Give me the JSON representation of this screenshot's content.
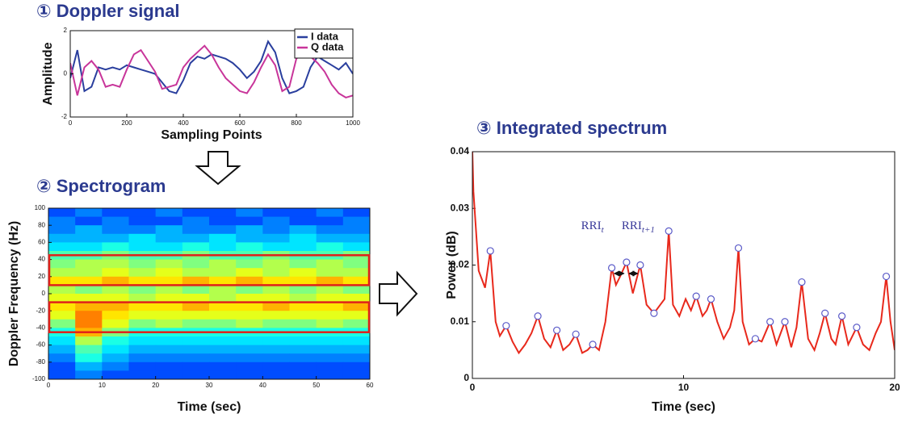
{
  "chart_data": [
    {
      "type": "line",
      "title": "① Doppler signal",
      "xlabel": "Sampling Points",
      "ylabel": "Amplitude",
      "x": [
        0,
        25,
        50,
        75,
        100,
        125,
        150,
        175,
        200,
        225,
        250,
        275,
        300,
        325,
        350,
        375,
        400,
        425,
        450,
        475,
        500,
        525,
        550,
        575,
        600,
        625,
        650,
        675,
        700,
        725,
        750,
        775,
        800,
        825,
        850,
        875,
        900,
        925,
        950,
        975,
        1000
      ],
      "series": [
        {
          "name": "I data",
          "color": "#2a3f9e",
          "values": [
            -0.2,
            1.1,
            -0.8,
            -0.6,
            0.3,
            0.2,
            0.3,
            0.2,
            0.4,
            0.3,
            0.2,
            0.1,
            0,
            -0.4,
            -0.8,
            -0.9,
            -0.3,
            0.5,
            0.8,
            0.7,
            0.9,
            0.8,
            0.7,
            0.5,
            0.2,
            -0.2,
            0.1,
            0.6,
            1.5,
            1.0,
            -0.2,
            -0.9,
            -0.8,
            -0.6,
            0.3,
            0.8,
            0.6,
            0.4,
            0.2,
            0.5,
            0
          ]
        },
        {
          "name": "Q data",
          "color": "#c8359a",
          "values": [
            0.5,
            -1.0,
            0.3,
            0.6,
            0.2,
            -0.6,
            -0.5,
            -0.6,
            0.2,
            0.9,
            1.1,
            0.6,
            0.1,
            -0.7,
            -0.6,
            -0.5,
            0.3,
            0.7,
            1.0,
            1.3,
            0.9,
            0.3,
            -0.2,
            -0.5,
            -0.8,
            -0.9,
            -0.4,
            0.3,
            0.9,
            0.4,
            -0.8,
            -0.6,
            0.7,
            1.0,
            0.8,
            0.5,
            0.1,
            -0.5,
            -0.9,
            -1.1,
            -1.0
          ]
        }
      ],
      "xlim": [
        0,
        1000
      ],
      "xticks": [
        0,
        200,
        400,
        600,
        800,
        1000
      ],
      "ylim": [
        -2,
        2
      ],
      "yticks": [
        -2,
        0,
        2
      ],
      "legend": "upper right"
    },
    {
      "type": "heatmap",
      "title": "② Spectrogram",
      "xlabel": "Time (sec)",
      "ylabel": "Doppler Frequency (Hz)",
      "x": [
        2.5,
        7.5,
        12.5,
        17.5,
        22.5,
        27.5,
        32.5,
        37.5,
        42.5,
        47.5,
        52.5,
        57.5
      ],
      "y": [
        95,
        85,
        75,
        65,
        55,
        45,
        35,
        25,
        15,
        5,
        -5,
        -15,
        -25,
        -35,
        -45,
        -55,
        -65,
        -75,
        -85,
        -95
      ],
      "z": [
        [
          0.2,
          0.25,
          0.2,
          0.2,
          0.25,
          0.2,
          0.2,
          0.25,
          0.2,
          0.2,
          0.25,
          0.2
        ],
        [
          0.25,
          0.2,
          0.25,
          0.2,
          0.2,
          0.25,
          0.2,
          0.2,
          0.25,
          0.2,
          0.2,
          0.25
        ],
        [
          0.25,
          0.3,
          0.25,
          0.25,
          0.3,
          0.25,
          0.25,
          0.3,
          0.25,
          0.3,
          0.25,
          0.25
        ],
        [
          0.3,
          0.3,
          0.3,
          0.35,
          0.3,
          0.3,
          0.35,
          0.3,
          0.3,
          0.35,
          0.3,
          0.3
        ],
        [
          0.35,
          0.35,
          0.4,
          0.35,
          0.35,
          0.4,
          0.35,
          0.4,
          0.35,
          0.35,
          0.4,
          0.35
        ],
        [
          0.45,
          0.45,
          0.5,
          0.45,
          0.45,
          0.5,
          0.45,
          0.45,
          0.5,
          0.45,
          0.45,
          0.5
        ],
        [
          0.5,
          0.55,
          0.55,
          0.5,
          0.55,
          0.5,
          0.55,
          0.5,
          0.55,
          0.5,
          0.55,
          0.5
        ],
        [
          0.55,
          0.55,
          0.6,
          0.55,
          0.6,
          0.55,
          0.55,
          0.6,
          0.55,
          0.6,
          0.55,
          0.55
        ],
        [
          0.65,
          0.65,
          0.7,
          0.65,
          0.65,
          0.7,
          0.65,
          0.7,
          0.65,
          0.65,
          0.7,
          0.65
        ],
        [
          0.55,
          0.5,
          0.55,
          0.5,
          0.55,
          0.5,
          0.55,
          0.5,
          0.55,
          0.5,
          0.55,
          0.5
        ],
        [
          0.6,
          0.6,
          0.6,
          0.55,
          0.6,
          0.6,
          0.55,
          0.6,
          0.6,
          0.55,
          0.6,
          0.6
        ],
        [
          0.65,
          0.7,
          0.7,
          0.65,
          0.65,
          0.7,
          0.65,
          0.65,
          0.7,
          0.65,
          0.65,
          0.7
        ],
        [
          0.6,
          0.75,
          0.65,
          0.6,
          0.6,
          0.6,
          0.6,
          0.6,
          0.6,
          0.6,
          0.6,
          0.6
        ],
        [
          0.5,
          0.75,
          0.6,
          0.5,
          0.55,
          0.5,
          0.5,
          0.55,
          0.5,
          0.5,
          0.55,
          0.5
        ],
        [
          0.4,
          0.7,
          0.5,
          0.4,
          0.4,
          0.4,
          0.4,
          0.4,
          0.4,
          0.4,
          0.4,
          0.4
        ],
        [
          0.35,
          0.55,
          0.4,
          0.35,
          0.35,
          0.35,
          0.35,
          0.35,
          0.35,
          0.35,
          0.35,
          0.35
        ],
        [
          0.3,
          0.45,
          0.35,
          0.3,
          0.3,
          0.3,
          0.3,
          0.3,
          0.3,
          0.3,
          0.3,
          0.3
        ],
        [
          0.25,
          0.4,
          0.3,
          0.25,
          0.25,
          0.25,
          0.25,
          0.25,
          0.25,
          0.25,
          0.25,
          0.25
        ],
        [
          0.2,
          0.3,
          0.25,
          0.2,
          0.2,
          0.2,
          0.2,
          0.2,
          0.2,
          0.2,
          0.2,
          0.2
        ],
        [
          0.2,
          0.25,
          0.2,
          0.2,
          0.2,
          0.2,
          0.2,
          0.2,
          0.2,
          0.2,
          0.2,
          0.2
        ]
      ],
      "colormap": "jet",
      "zlim": [
        0,
        1
      ],
      "xlim": [
        0,
        60
      ],
      "xticks": [
        0,
        10,
        20,
        30,
        40,
        50,
        60
      ],
      "ylim": [
        -100,
        100
      ],
      "yticks": [
        100,
        80,
        60,
        40,
        20,
        0,
        -20,
        -40,
        -60,
        -80,
        -100
      ],
      "highlight_bands": [
        [
          10,
          45
        ],
        [
          -45,
          -10
        ]
      ],
      "highlight_color": "#e0201a"
    },
    {
      "type": "line",
      "title": "③ Integrated spectrum",
      "xlabel": "Time (sec)",
      "ylabel": "Power (dB)",
      "color": "#e8291c",
      "x": [
        0,
        0.05,
        0.3,
        0.6,
        0.85,
        1.1,
        1.3,
        1.6,
        1.9,
        2.2,
        2.5,
        2.8,
        3.1,
        3.4,
        3.7,
        4.0,
        4.3,
        4.6,
        4.9,
        5.2,
        5.45,
        5.7,
        6.0,
        6.3,
        6.6,
        6.8,
        7.0,
        7.3,
        7.6,
        7.95,
        8.25,
        8.6,
        8.9,
        9.1,
        9.3,
        9.5,
        9.8,
        10.1,
        10.35,
        10.6,
        10.9,
        11.1,
        11.3,
        11.6,
        11.9,
        12.2,
        12.4,
        12.6,
        12.8,
        13.1,
        13.4,
        13.7,
        14.1,
        14.4,
        14.8,
        15.1,
        15.35,
        15.6,
        15.9,
        16.2,
        16.45,
        16.7,
        17.0,
        17.2,
        17.5,
        17.8,
        18.2,
        18.5,
        18.8,
        19.1,
        19.35,
        19.6,
        19.8,
        20
      ],
      "values": [
        0.04,
        0.033,
        0.019,
        0.016,
        0.0225,
        0.01,
        0.0075,
        0.0093,
        0.0065,
        0.0045,
        0.006,
        0.008,
        0.011,
        0.007,
        0.0055,
        0.0085,
        0.005,
        0.006,
        0.0078,
        0.0045,
        0.005,
        0.006,
        0.005,
        0.01,
        0.0195,
        0.0165,
        0.018,
        0.0205,
        0.015,
        0.02,
        0.013,
        0.0115,
        0.013,
        0.014,
        0.026,
        0.013,
        0.011,
        0.014,
        0.012,
        0.0145,
        0.011,
        0.012,
        0.014,
        0.01,
        0.007,
        0.009,
        0.012,
        0.023,
        0.01,
        0.006,
        0.007,
        0.0065,
        0.01,
        0.006,
        0.01,
        0.0055,
        0.009,
        0.017,
        0.007,
        0.005,
        0.008,
        0.0115,
        0.007,
        0.006,
        0.011,
        0.006,
        0.009,
        0.006,
        0.005,
        0.008,
        0.01,
        0.018,
        0.01,
        0.005
      ],
      "peak_x": [
        0.85,
        1.6,
        3.1,
        4.0,
        4.9,
        5.7,
        6.6,
        7.3,
        7.95,
        8.6,
        9.3,
        10.6,
        11.3,
        12.6,
        13.4,
        14.1,
        14.8,
        15.6,
        16.7,
        17.5,
        18.2,
        19.6
      ],
      "peak_values": [
        0.0225,
        0.0093,
        0.011,
        0.0085,
        0.0078,
        0.006,
        0.0195,
        0.0205,
        0.02,
        0.0115,
        0.026,
        0.0145,
        0.014,
        0.023,
        0.007,
        0.01,
        0.01,
        0.017,
        0.0115,
        0.011,
        0.009,
        0.018
      ],
      "peak_color": "#5a5ac8",
      "annotations": [
        {
          "text": "RRI",
          "sub": "t"
        },
        {
          "text": "RRI",
          "sub": "t+1"
        }
      ],
      "xlim": [
        0,
        20
      ],
      "xticks": [
        0,
        10,
        20
      ],
      "ylim": [
        0,
        0.04
      ],
      "yticks": [
        0,
        0.01,
        0.02,
        0.03,
        0.04
      ]
    }
  ]
}
